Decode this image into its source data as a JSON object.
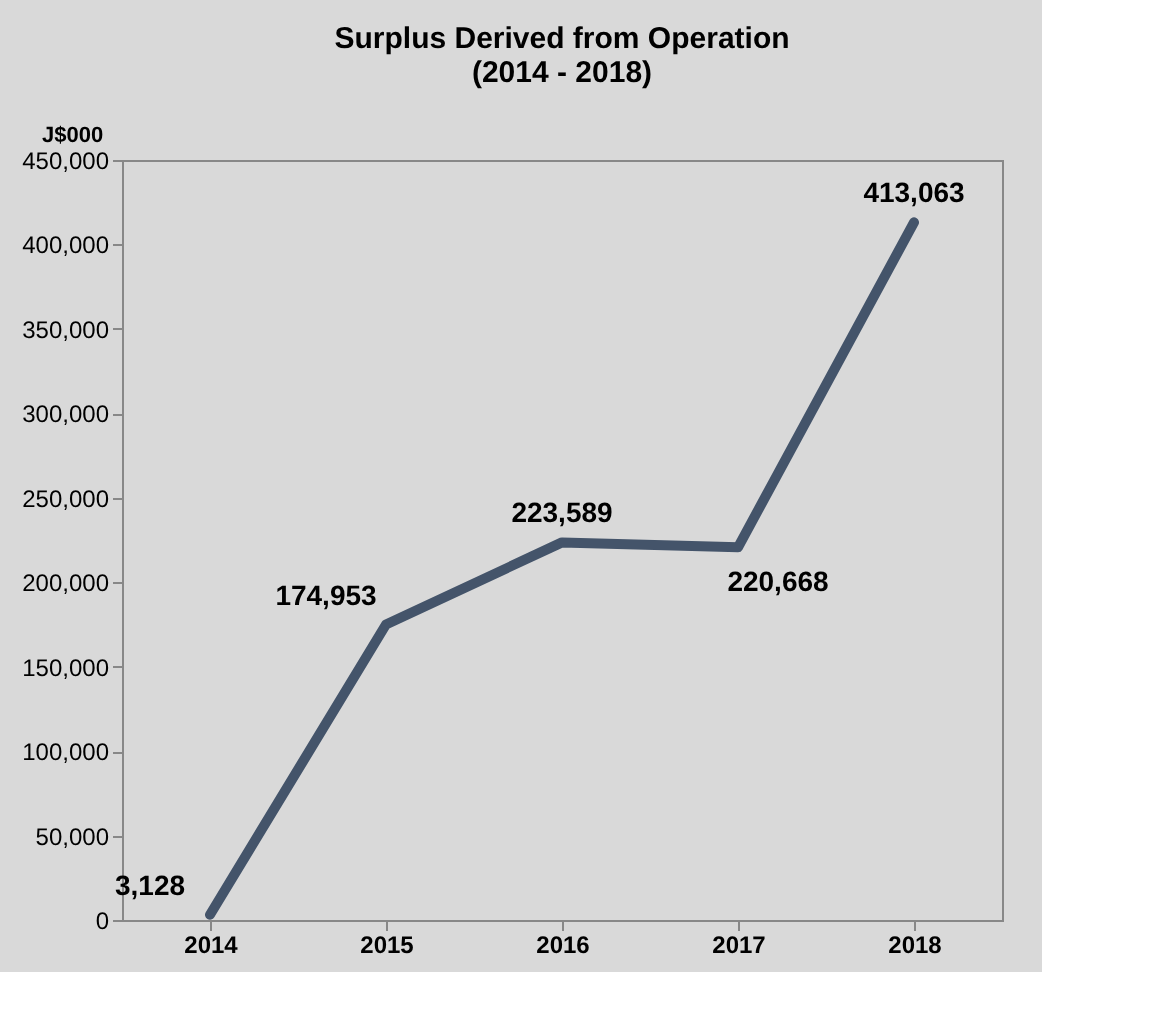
{
  "chart_data": {
    "type": "line",
    "title": [
      "Surplus Derived from Operation",
      "(2014 - 2018)"
    ],
    "ylabel": "J$000",
    "categories": [
      "2014",
      "2015",
      "2016",
      "2017",
      "2018"
    ],
    "series": [
      {
        "color": "#44546a",
        "values": [
          3128,
          174953,
          223589,
          220668,
          413063
        ],
        "value_labels": [
          "3,128",
          "174,953",
          "223,589",
          "220,668",
          "413,063"
        ]
      }
    ],
    "ylim": [
      0,
      450000
    ],
    "yticks": [
      0,
      {
        "value": 50000,
        "label": "50,000"
      },
      {
        "value": 100000,
        "label": "100,000"
      },
      {
        "value": 150000,
        "label": "150,000"
      },
      {
        "value": 200000,
        "label": "200,000"
      },
      {
        "value": 250000,
        "label": "250,000"
      },
      {
        "value": 300000,
        "label": "300,000"
      },
      {
        "value": 350000,
        "label": "350,000"
      },
      {
        "value": 400000,
        "label": "400,000"
      },
      {
        "value": 450000,
        "label": "450,000"
      }
    ],
    "grid": false,
    "marker": "none",
    "line_style": "solid"
  }
}
